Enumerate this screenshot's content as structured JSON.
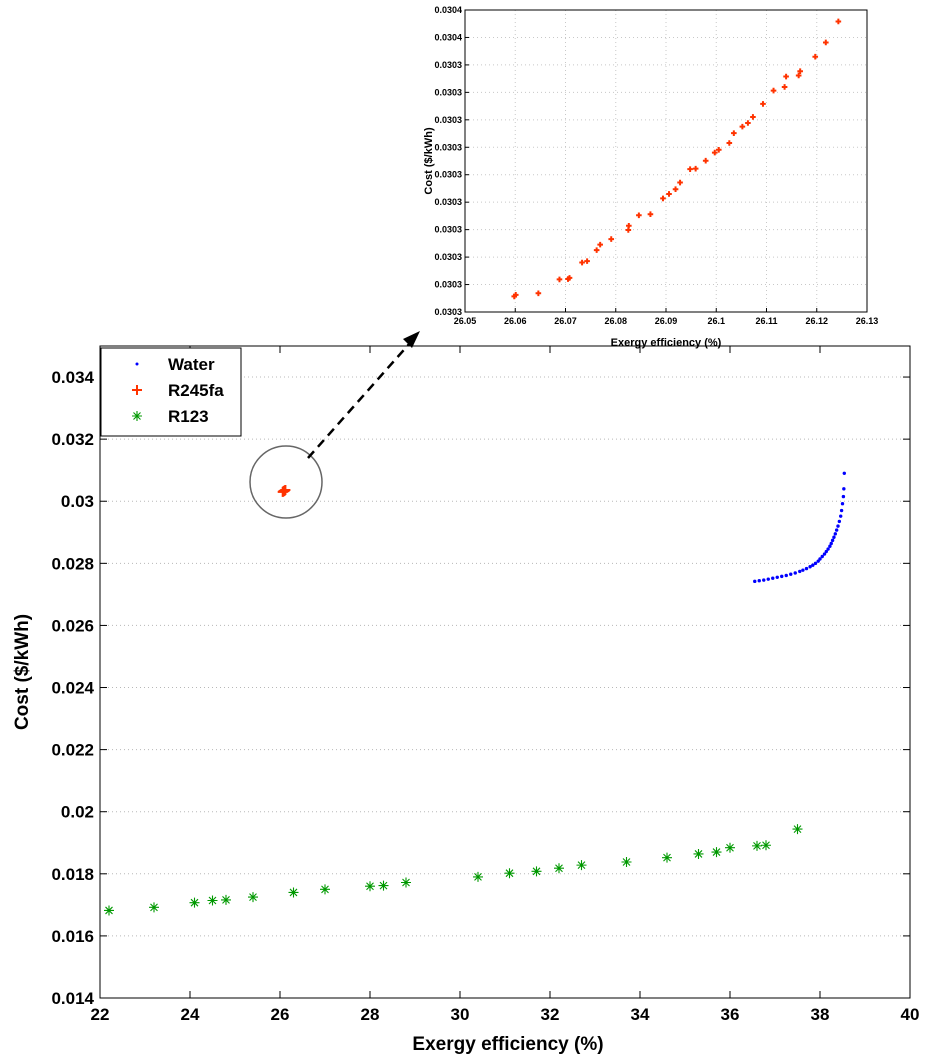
{
  "chart_data": [
    {
      "type": "scatter",
      "xlabel": "Exergy efficiency (%)",
      "ylabel": "Cost ($/kWh)",
      "xlim": [
        22,
        40
      ],
      "ylim": [
        0.014,
        0.035
      ],
      "xticks": [
        "22",
        "24",
        "26",
        "28",
        "30",
        "32",
        "34",
        "36",
        "38",
        "40"
      ],
      "yticks": [
        "0.014",
        "0.016",
        "0.018",
        "0.02",
        "0.022",
        "0.024",
        "0.026",
        "0.028",
        "0.03",
        "0.032",
        "0.034"
      ],
      "grid": "horizontal dotted",
      "legend": "top-left",
      "series": [
        {
          "name": "Water",
          "marker": "dot",
          "color": "#0000ff",
          "x": [
            36.55,
            36.65,
            36.75,
            36.85,
            36.95,
            37.05,
            37.15,
            37.25,
            37.35,
            37.45,
            37.55,
            37.62,
            37.7,
            37.78,
            37.84,
            37.9,
            37.96,
            38.0,
            38.05,
            38.1,
            38.14,
            38.18,
            38.22,
            38.25,
            38.28,
            38.31,
            38.34,
            38.37,
            38.4,
            38.43,
            38.46,
            38.48,
            38.5,
            38.52,
            38.53,
            38.54
          ],
          "y": [
            0.02742,
            0.02744,
            0.02746,
            0.02749,
            0.02752,
            0.02755,
            0.02758,
            0.02761,
            0.02765,
            0.02769,
            0.02774,
            0.02778,
            0.02783,
            0.02789,
            0.02794,
            0.028,
            0.02807,
            0.02814,
            0.02822,
            0.0283,
            0.02838,
            0.02846,
            0.02855,
            0.02864,
            0.02874,
            0.02884,
            0.02895,
            0.02907,
            0.0292,
            0.02935,
            0.02952,
            0.0297,
            0.02992,
            0.03015,
            0.0304,
            0.0309
          ]
        },
        {
          "name": "R245fa",
          "marker": "plus",
          "color": "#ff3300",
          "x": [
            26.06,
            26.07,
            26.08,
            26.09,
            26.1,
            26.11,
            26.12
          ],
          "y": [
            0.0303,
            0.03031,
            0.03032,
            0.03033,
            0.03034,
            0.03035,
            0.03036
          ]
        },
        {
          "name": "R123",
          "marker": "asterisk",
          "color": "#009900",
          "x": [
            22.2,
            23.2,
            24.1,
            24.5,
            24.8,
            25.4,
            26.3,
            27.0,
            28.0,
            28.3,
            28.8,
            30.4,
            31.1,
            31.7,
            32.2,
            32.7,
            33.7,
            34.6,
            35.3,
            35.7,
            36.0,
            36.6,
            36.8,
            37.5
          ],
          "y": [
            0.01682,
            0.01692,
            0.01707,
            0.01714,
            0.01716,
            0.01725,
            0.0174,
            0.0175,
            0.0176,
            0.01762,
            0.01772,
            0.0179,
            0.01802,
            0.01808,
            0.01818,
            0.01828,
            0.01838,
            0.01852,
            0.01864,
            0.0187,
            0.01884,
            0.0189,
            0.01892,
            0.01944
          ]
        }
      ]
    },
    {
      "type": "scatter",
      "xlabel": "Exergy efficiency (%)",
      "ylabel": "Cost ($/kWh)",
      "xlim": [
        26.05,
        26.13
      ],
      "ylim": [
        0,
        1
      ],
      "xticks": [
        "26.05",
        "26.06",
        "26.07",
        "26.08",
        "26.09",
        "26.1",
        "26.11",
        "26.12",
        "26.13"
      ],
      "yticks": [
        "0.0303",
        "0.0303",
        "0.0303",
        "0.0303",
        "0.0303",
        "0.0303",
        "0.0303",
        "0.0303",
        "0.0303",
        "0.0303",
        "0.0304",
        "0.0304"
      ],
      "grid": "both dotted",
      "series": [
        {
          "name": "R245fa",
          "marker": "plus",
          "color": "#ff3300",
          "x": [
            26.0598,
            26.0601,
            26.0646,
            26.0688,
            26.0705,
            26.0708,
            26.0733,
            26.0743,
            26.0762,
            26.0769,
            26.0791,
            26.0825,
            26.0826,
            26.0846,
            26.0869,
            26.0894,
            26.0906,
            26.0919,
            26.0928,
            26.0948,
            26.0959,
            26.0979,
            26.0997,
            26.1005,
            26.1026,
            26.1035,
            26.1052,
            26.1063,
            26.1073,
            26.1093,
            26.1114,
            26.1136,
            26.1139,
            26.1164,
            26.1167,
            26.1197,
            26.1218,
            26.1243
          ],
          "y": [
            0.0516,
            0.0568,
            0.062,
            0.1079,
            0.1092,
            0.1128,
            0.1638,
            0.1685,
            0.2049,
            0.2231,
            0.2414,
            0.2717,
            0.2856,
            0.3203,
            0.3238,
            0.3762,
            0.3908,
            0.4065,
            0.4287,
            0.4729,
            0.4746,
            0.5009,
            0.5278,
            0.5371,
            0.5596,
            0.5922,
            0.6138,
            0.6258,
            0.6458,
            0.6891,
            0.7332,
            0.7452,
            0.7797,
            0.7832,
            0.7973,
            0.8453,
            0.8925,
            0.962
          ]
        }
      ]
    }
  ]
}
